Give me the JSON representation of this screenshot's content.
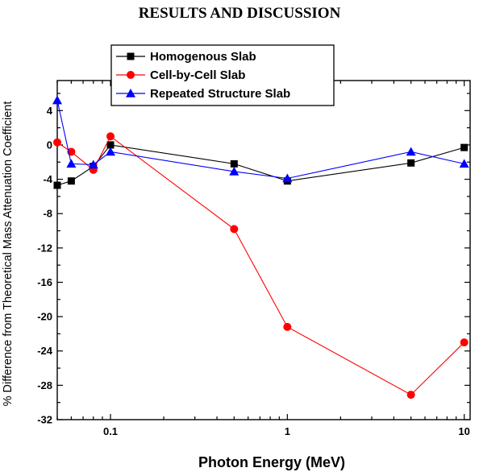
{
  "section_heading": "RESULTS AND DISCUSSION",
  "chart_data": {
    "type": "line",
    "title": "",
    "xlabel": "Photon Energy (MeV)",
    "ylabel": "% Difference from Theoretical Mass Attenuation Coefficient",
    "xscale": "log",
    "xlim": [
      0.05,
      10.8
    ],
    "ylim": [
      -32,
      7.5
    ],
    "x_ticks": [
      0.1,
      1,
      10
    ],
    "x_tick_labels": [
      "0.1",
      "1",
      "10"
    ],
    "y_ticks": [
      4,
      0,
      -4,
      -8,
      -12,
      -16,
      -20,
      -24,
      -28,
      -32
    ],
    "y_tick_labels": [
      "4",
      "0",
      "-4",
      "-8",
      "-12",
      "-16",
      "-20",
      "-24",
      "-28",
      "-32"
    ],
    "legend_position": "top-left",
    "grid": false,
    "series": [
      {
        "name": "Homogenous Slab",
        "color": "#000000",
        "marker": "square",
        "x": [
          0.05,
          0.06,
          0.08,
          0.1,
          0.5,
          1,
          5,
          10
        ],
        "y": [
          -4.7,
          -4.2,
          -2.5,
          0.0,
          -2.2,
          -4.2,
          -2.1,
          -0.3
        ]
      },
      {
        "name": "Cell-by-Cell Slab",
        "color": "#ff0000",
        "marker": "circle",
        "x": [
          0.05,
          0.06,
          0.08,
          0.1,
          0.5,
          1,
          5,
          10
        ],
        "y": [
          0.3,
          -0.8,
          -2.9,
          1.0,
          -9.8,
          -21.2,
          -29.1,
          -23.0
        ]
      },
      {
        "name": "Repeated Structure Slab",
        "color": "#0000ff",
        "marker": "triangle",
        "x": [
          0.05,
          0.06,
          0.08,
          0.1,
          0.5,
          1,
          5,
          10
        ],
        "y": [
          5.2,
          -2.2,
          -2.3,
          -0.8,
          -3.1,
          -3.9,
          -0.8,
          -2.2
        ]
      }
    ]
  }
}
